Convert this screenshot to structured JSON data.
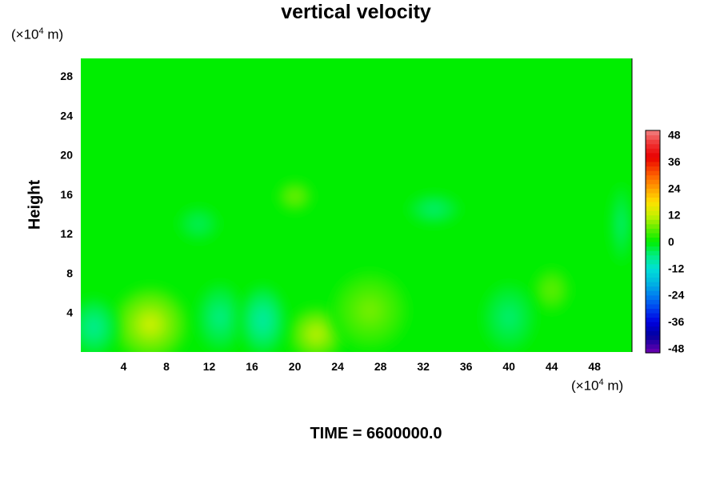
{
  "page": {
    "time_label": "TIME = 6600000.0"
  },
  "chart_data": {
    "type": "heatmap",
    "title": "vertical velocity",
    "xlabel": "",
    "ylabel": "Height",
    "x_unit": {
      "base": "(×10",
      "exp": "4",
      "suffix": " m)"
    },
    "y_unit": {
      "base": "(×10",
      "exp": "4",
      "suffix": " m)"
    },
    "xlim": [
      0,
      51.5
    ],
    "ylim": [
      0,
      29.8
    ],
    "x_ticks": [
      4,
      8,
      12,
      16,
      20,
      24,
      28,
      32,
      36,
      40,
      44,
      48
    ],
    "y_ticks": [
      4,
      8,
      12,
      16,
      20,
      24,
      28
    ],
    "x_tick_labels": [
      "4",
      "8",
      "12",
      "16",
      "20",
      "24",
      "28",
      "32",
      "36",
      "40",
      "44",
      "48"
    ],
    "y_tick_labels": [
      "4",
      "8",
      "12",
      "16",
      "20",
      "24",
      "28"
    ],
    "background_value": 0,
    "features": [
      {
        "x": 6.5,
        "y": 2.8,
        "rx": 3.5,
        "ry": 3.8,
        "value": 12
      },
      {
        "x": 22,
        "y": 1.8,
        "rx": 2.6,
        "ry": 2.8,
        "value": 11
      },
      {
        "x": 27,
        "y": 4.2,
        "rx": 3.6,
        "ry": 4.0,
        "value": 7
      },
      {
        "x": 44,
        "y": 6.3,
        "rx": 1.8,
        "ry": 2.3,
        "value": 6
      },
      {
        "x": 20,
        "y": 15.8,
        "rx": 1.7,
        "ry": 1.6,
        "value": 7
      },
      {
        "x": 13,
        "y": 3.5,
        "rx": 2.2,
        "ry": 3.5,
        "value": -6
      },
      {
        "x": 17,
        "y": 3.2,
        "rx": 2.2,
        "ry": 3.6,
        "value": -8
      },
      {
        "x": 1.2,
        "y": 2.5,
        "rx": 2.2,
        "ry": 3.0,
        "value": -7
      },
      {
        "x": 40,
        "y": 3.5,
        "rx": 2.5,
        "ry": 3.5,
        "value": -5
      },
      {
        "x": 33,
        "y": 14.5,
        "rx": 2.5,
        "ry": 1.6,
        "value": -5
      },
      {
        "x": 11,
        "y": 13,
        "rx": 2.0,
        "ry": 1.8,
        "value": -4
      },
      {
        "x": 50.5,
        "y": 13,
        "rx": 1.0,
        "ry": 4.0,
        "value": -5
      }
    ],
    "colorbar": {
      "ticks": [
        48,
        36,
        24,
        12,
        0,
        -12,
        -24,
        -36,
        -48
      ],
      "tick_labels": [
        "48",
        "36",
        "24",
        "12",
        "0",
        "-12",
        "-24",
        "-36",
        "-48"
      ],
      "min": -50,
      "max": 50,
      "colors": [
        {
          "value": 50,
          "color": "#f08080"
        },
        {
          "value": 44,
          "color": "#f03030"
        },
        {
          "value": 38,
          "color": "#e80000"
        },
        {
          "value": 30,
          "color": "#ff6000"
        },
        {
          "value": 24,
          "color": "#ffa000"
        },
        {
          "value": 18,
          "color": "#ffe000"
        },
        {
          "value": 12,
          "color": "#c8f000"
        },
        {
          "value": 6,
          "color": "#60ee00"
        },
        {
          "value": 0,
          "color": "#00ee00"
        },
        {
          "value": -6,
          "color": "#00ee80"
        },
        {
          "value": -12,
          "color": "#00e0d8"
        },
        {
          "value": -18,
          "color": "#00b8e0"
        },
        {
          "value": -24,
          "color": "#0080f0"
        },
        {
          "value": -30,
          "color": "#0040f0"
        },
        {
          "value": -36,
          "color": "#0000e0"
        },
        {
          "value": -42,
          "color": "#0000a0"
        },
        {
          "value": -50,
          "color": "#7000b0"
        }
      ]
    }
  }
}
